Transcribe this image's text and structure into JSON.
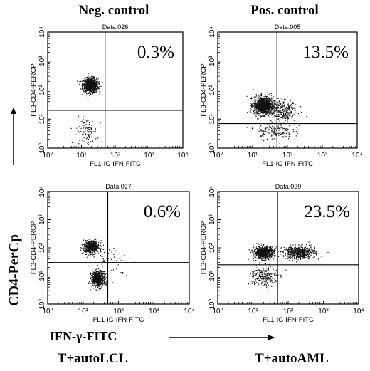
{
  "figure": {
    "column_headers": [
      "Neg. control",
      "Pos. control"
    ],
    "y_axis_label": "CD4-PerCp",
    "x_axis_label": "IFN-γ-FITC",
    "bottom_labels": [
      "T+autoLCL",
      "T+autoAML"
    ]
  },
  "chart_data": [
    {
      "type": "scatter",
      "title": "Data.026",
      "xlabel": "FL1-IC-IFN-FITC",
      "ylabel": "FL3-CD4-PERCP",
      "x_scale": "log",
      "y_scale": "log",
      "xlim": [
        1,
        10000
      ],
      "ylim": [
        1,
        10000
      ],
      "ticks": [
        "10°",
        "10¹",
        "10²",
        "10³",
        "10⁴"
      ],
      "quadrant_gate": {
        "x": 50,
        "y": 20
      },
      "upper_right_percent": "0.3%",
      "populations": [
        {
          "center": [
            18,
            150
          ],
          "spread": [
            1.6,
            1.7
          ],
          "count": 950
        },
        {
          "center": [
            14,
            4
          ],
          "spread": [
            1.9,
            2.6
          ],
          "count": 120
        }
      ]
    },
    {
      "type": "scatter",
      "title": "Data.005",
      "xlabel": "FL1-IC-IFN-FITC",
      "ylabel": "FL3-CD4-PERCP",
      "x_scale": "log",
      "y_scale": "log",
      "xlim": [
        1,
        10000
      ],
      "ylim": [
        1,
        10000
      ],
      "ticks": [
        "10°",
        "10¹",
        "10²",
        "10³",
        "10⁴"
      ],
      "quadrant_gate": {
        "x": 50,
        "y": 7
      },
      "upper_right_percent": "13.5%",
      "populations": [
        {
          "center": [
            20,
            30
          ],
          "spread": [
            1.8,
            1.9
          ],
          "count": 1100
        },
        {
          "center": [
            70,
            20
          ],
          "spread": [
            2.4,
            2.3
          ],
          "count": 350
        },
        {
          "center": [
            40,
            4
          ],
          "spread": [
            3.0,
            1.8
          ],
          "count": 160
        }
      ]
    },
    {
      "type": "scatter",
      "title": "Data.027",
      "xlabel": "FL1-IC-IFN-FITC",
      "ylabel": "FL3-CD4-PERCP",
      "x_scale": "log",
      "y_scale": "log",
      "xlim": [
        1,
        10000
      ],
      "ylim": [
        1,
        10000
      ],
      "ticks": [
        "10°",
        "10¹",
        "10²",
        "10³",
        "10⁴"
      ],
      "quadrant_gate": {
        "x": 50,
        "y": 30
      },
      "upper_right_percent": "0.6%",
      "populations": [
        {
          "center": [
            17,
            110
          ],
          "spread": [
            1.6,
            1.6
          ],
          "count": 600
        },
        {
          "center": [
            26,
            8
          ],
          "spread": [
            1.5,
            1.8
          ],
          "count": 650
        },
        {
          "center": [
            60,
            40
          ],
          "spread": [
            3.2,
            3.0
          ],
          "count": 50
        }
      ]
    },
    {
      "type": "scatter",
      "title": "Data.029",
      "xlabel": "FL1-IC-IFN-FITC",
      "ylabel": "FL3-CD4-PERCP",
      "x_scale": "log",
      "y_scale": "log",
      "xlim": [
        1,
        10000
      ],
      "ylim": [
        1,
        10000
      ],
      "ticks": [
        "10°",
        "10¹",
        "10²",
        "10³",
        "10⁴"
      ],
      "quadrant_gate": {
        "x": 50,
        "y": 25
      },
      "upper_right_percent": "23.5%",
      "populations": [
        {
          "center": [
            20,
            70
          ],
          "spread": [
            1.8,
            1.6
          ],
          "count": 800
        },
        {
          "center": [
            200,
            70
          ],
          "spread": [
            2.6,
            1.6
          ],
          "count": 650
        },
        {
          "center": [
            20,
            10
          ],
          "spread": [
            2.2,
            2.2
          ],
          "count": 250
        }
      ]
    }
  ]
}
